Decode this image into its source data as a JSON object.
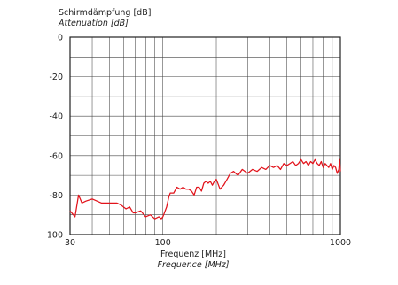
{
  "chart_data": {
    "type": "line",
    "ylabel": "Schirmdämpfung [dB]",
    "ylabel_en": "Attenuation [dB]",
    "xlabel": "Frequenz [MHz]",
    "xlabel_en": "Frequence [MHz]",
    "x_scale": "log",
    "xlim": [
      30,
      1000
    ],
    "ylim": [
      -100,
      0
    ],
    "x_ticks": [
      30,
      100,
      1000
    ],
    "y_ticks": [
      0,
      -20,
      -40,
      -60,
      -80,
      -100
    ],
    "x_tick_labels": [
      "30",
      "100",
      "1000"
    ],
    "y_tick_labels": [
      "0",
      "-20",
      "-40",
      "-60",
      "-80",
      "-100"
    ],
    "grid": true,
    "legend": "none",
    "line_color": "#e2131b",
    "series": [
      {
        "x": [
          30,
          32,
          33.5,
          35,
          37,
          40,
          45,
          50,
          55,
          58,
          62,
          65,
          68,
          70,
          75,
          80,
          85,
          90,
          95,
          98,
          100,
          102,
          105,
          108,
          110,
          115,
          120,
          125,
          130,
          135,
          140,
          145,
          150,
          155,
          160,
          165,
          170,
          175,
          180,
          185,
          190,
          195,
          200,
          210,
          220,
          230,
          240,
          250,
          265,
          280,
          300,
          320,
          340,
          360,
          380,
          400,
          420,
          440,
          460,
          480,
          500,
          520,
          540,
          560,
          580,
          600,
          620,
          640,
          660,
          680,
          700,
          720,
          740,
          760,
          780,
          800,
          820,
          840,
          860,
          880,
          900,
          920,
          940,
          960,
          980,
          990,
          1000
        ],
        "values": [
          -88,
          -91,
          -80,
          -84,
          -83,
          -82,
          -84,
          -84,
          -84,
          -85,
          -87,
          -86,
          -89,
          -89,
          -88,
          -91,
          -90,
          -92,
          -91,
          -92,
          -91,
          -89,
          -86,
          -81,
          -79,
          -79,
          -76,
          -77,
          -76,
          -77,
          -77,
          -78,
          -80,
          -76,
          -76,
          -78,
          -74,
          -73,
          -74,
          -73,
          -75,
          -73,
          -72,
          -77,
          -75,
          -72,
          -69,
          -68,
          -70,
          -67,
          -69,
          -67,
          -68,
          -66,
          -67,
          -65,
          -66,
          -65,
          -67,
          -64,
          -65,
          -64,
          -63,
          -65,
          -64,
          -62,
          -64,
          -63,
          -65,
          -63,
          -64,
          -62,
          -64,
          -65,
          -63,
          -66,
          -64,
          -65,
          -66,
          -64,
          -67,
          -65,
          -66,
          -69,
          -67,
          -62,
          -68
        ]
      }
    ]
  }
}
